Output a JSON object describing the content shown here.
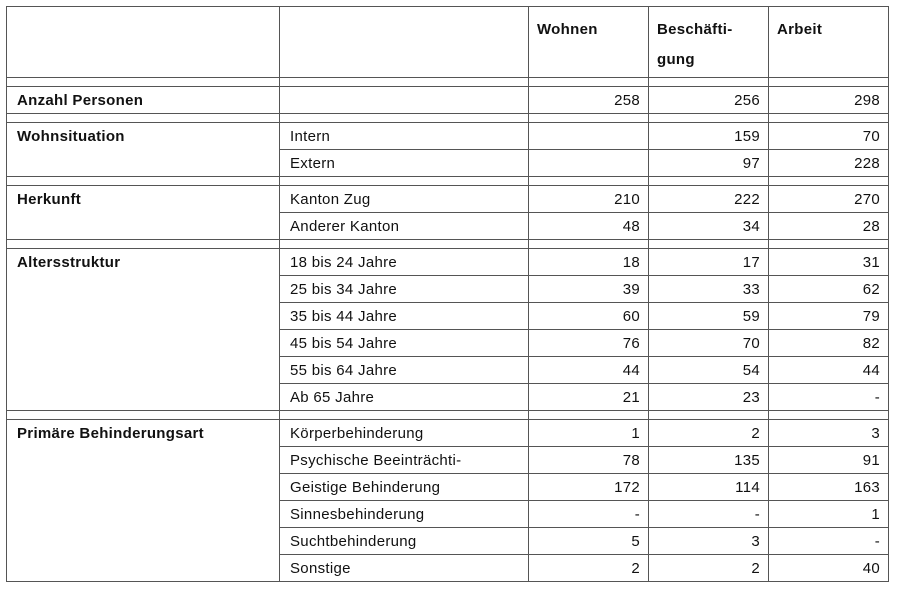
{
  "header": {
    "col_wohnen": "Wohnen",
    "col_beschaeftigung_line1": "Beschäfti-",
    "col_beschaeftigung_line2": "gung",
    "col_arbeit": "Arbeit"
  },
  "sections": [
    {
      "title": "Anzahl Personen",
      "rows": [
        {
          "label": "",
          "wohnen": "258",
          "beschaeftigung": "256",
          "arbeit": "298"
        }
      ]
    },
    {
      "title": "Wohnsituation",
      "rows": [
        {
          "label": "Intern",
          "wohnen": "",
          "beschaeftigung": "159",
          "arbeit": "70"
        },
        {
          "label": "Extern",
          "wohnen": "",
          "beschaeftigung": "97",
          "arbeit": "228"
        }
      ]
    },
    {
      "title": "Herkunft",
      "rows": [
        {
          "label": "Kanton Zug",
          "wohnen": "210",
          "beschaeftigung": "222",
          "arbeit": "270"
        },
        {
          "label": "Anderer Kanton",
          "wohnen": "48",
          "beschaeftigung": "34",
          "arbeit": "28"
        }
      ]
    },
    {
      "title": "Altersstruktur",
      "rows": [
        {
          "label": "18 bis 24 Jahre",
          "wohnen": "18",
          "beschaeftigung": "17",
          "arbeit": "31"
        },
        {
          "label": "25 bis 34 Jahre",
          "wohnen": "39",
          "beschaeftigung": "33",
          "arbeit": "62"
        },
        {
          "label": "35 bis 44 Jahre",
          "wohnen": "60",
          "beschaeftigung": "59",
          "arbeit": "79"
        },
        {
          "label": "45 bis 54 Jahre",
          "wohnen": "76",
          "beschaeftigung": "70",
          "arbeit": "82"
        },
        {
          "label": "55 bis 64 Jahre",
          "wohnen": "44",
          "beschaeftigung": "54",
          "arbeit": "44"
        },
        {
          "label": "Ab 65 Jahre",
          "wohnen": "21",
          "beschaeftigung": "23",
          "arbeit": "-"
        }
      ]
    },
    {
      "title": "Primäre Behinderungsart",
      "rows": [
        {
          "label": "Körperbehinderung",
          "wohnen": "1",
          "beschaeftigung": "2",
          "arbeit": "3"
        },
        {
          "label": "Psychische Beeinträchti-",
          "wohnen": "78",
          "beschaeftigung": "135",
          "arbeit": "91"
        },
        {
          "label": "Geistige Behinderung",
          "wohnen": "172",
          "beschaeftigung": "114",
          "arbeit": "163"
        },
        {
          "label": "Sinnesbehinderung",
          "wohnen": "-",
          "beschaeftigung": "-",
          "arbeit": "1"
        },
        {
          "label": "Suchtbehinderung",
          "wohnen": "5",
          "beschaeftigung": "3",
          "arbeit": "-"
        },
        {
          "label": "Sonstige",
          "wohnen": "2",
          "beschaeftigung": "2",
          "arbeit": "40"
        }
      ]
    }
  ]
}
